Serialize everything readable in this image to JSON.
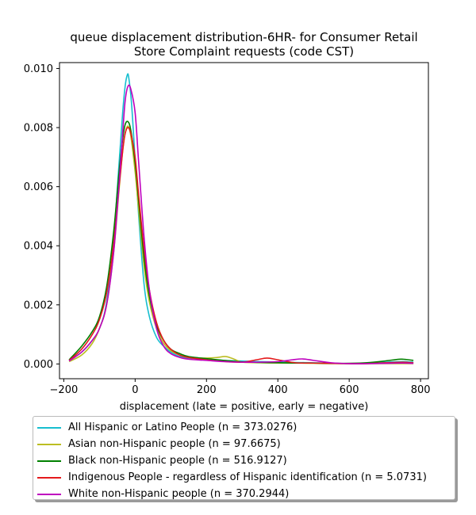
{
  "chart_data": {
    "type": "line",
    "title_lines": [
      "queue displacement distribution-6HR-  for Consumer Retail",
      "Store Complaint  requests (code CST)"
    ],
    "xlabel": "displacement (late = positive, early = negative)",
    "ylabel": "",
    "xlim": [
      -212,
      822
    ],
    "ylim": [
      -0.0005,
      0.0102
    ],
    "xticks": [
      -200,
      0,
      200,
      400,
      600,
      800
    ],
    "yticks": [
      0.0,
      0.002,
      0.004,
      0.006,
      0.008,
      0.01
    ],
    "xtick_labels": [
      "−200",
      "0",
      "200",
      "400",
      "600",
      "800"
    ],
    "ytick_labels": [
      "0.000",
      "0.002",
      "0.004",
      "0.006",
      "0.008",
      "0.010"
    ],
    "legend_position": "below",
    "series": [
      {
        "name": "All Hispanic or Latino People (n = 373.0276)",
        "color": "#17becf",
        "x": [
          -185,
          -150,
          -120,
          -100,
          -80,
          -60,
          -45,
          -35,
          -28,
          -22,
          -18,
          -10,
          0,
          10,
          25,
          40,
          60,
          80,
          100,
          125,
          150,
          200,
          250,
          300,
          350,
          400,
          450,
          500,
          550,
          600,
          650,
          700,
          750,
          780
        ],
        "y": [
          0.00012,
          0.0004,
          0.0008,
          0.0012,
          0.0021,
          0.0043,
          0.0068,
          0.0085,
          0.0094,
          0.00978,
          0.0097,
          0.0088,
          0.0069,
          0.005,
          0.0027,
          0.0016,
          0.0009,
          0.0006,
          0.0004,
          0.00025,
          0.0002,
          0.00016,
          0.00012,
          0.0001,
          8e-05,
          6e-05,
          5e-05,
          4e-05,
          2e-05,
          1e-05,
          2e-05,
          6e-05,
          8e-05,
          6e-05
        ]
      },
      {
        "name": "Asian non-Hispanic people (n = 97.6675)",
        "color": "#bcbd22",
        "x": [
          -185,
          -150,
          -120,
          -100,
          -80,
          -60,
          -45,
          -35,
          -28,
          -20,
          -12,
          0,
          10,
          25,
          40,
          60,
          80,
          100,
          125,
          150,
          200,
          230,
          255,
          280,
          300,
          350,
          400,
          450,
          500,
          550,
          600,
          650,
          700,
          750,
          780
        ],
        "y": [
          8e-05,
          0.0003,
          0.0007,
          0.0012,
          0.002,
          0.0038,
          0.0059,
          0.0072,
          0.0078,
          0.00805,
          0.0077,
          0.0065,
          0.0052,
          0.0033,
          0.0021,
          0.0012,
          0.0007,
          0.00045,
          0.0003,
          0.00022,
          0.0002,
          0.00022,
          0.00025,
          0.00015,
          6e-05,
          4e-05,
          3e-05,
          3e-05,
          2e-05,
          1e-05,
          1e-05,
          1e-05,
          1e-05,
          1e-05,
          1e-05
        ]
      },
      {
        "name": "Black non-Hispanic people (n = 516.9127)",
        "color": "#008000",
        "x": [
          -185,
          -150,
          -120,
          -100,
          -80,
          -60,
          -45,
          -35,
          -28,
          -20,
          -12,
          0,
          10,
          25,
          40,
          60,
          80,
          100,
          125,
          150,
          200,
          250,
          300,
          350,
          400,
          450,
          500,
          550,
          600,
          650,
          700,
          740,
          760,
          780
        ],
        "y": [
          0.00014,
          0.0006,
          0.0011,
          0.0016,
          0.0026,
          0.0045,
          0.0065,
          0.0076,
          0.0081,
          0.0082,
          0.0079,
          0.0068,
          0.0055,
          0.0036,
          0.0023,
          0.0013,
          0.0008,
          0.0005,
          0.00035,
          0.00025,
          0.00018,
          0.00012,
          7e-05,
          5e-05,
          4e-05,
          3e-05,
          3e-05,
          2e-05,
          2e-05,
          4e-05,
          0.0001,
          0.00016,
          0.00015,
          0.00012
        ]
      },
      {
        "name": "Indigenous People - regardless of Hispanic identification (n = 5.0731)",
        "color": "#e41a1c",
        "x": [
          -185,
          -150,
          -120,
          -100,
          -80,
          -60,
          -45,
          -35,
          -28,
          -20,
          -12,
          0,
          10,
          25,
          40,
          60,
          80,
          100,
          125,
          150,
          200,
          250,
          300,
          340,
          370,
          400,
          450,
          500,
          550,
          600,
          650,
          700,
          750,
          780
        ],
        "y": [
          0.00012,
          0.0005,
          0.001,
          0.0015,
          0.0024,
          0.0041,
          0.006,
          0.0072,
          0.0078,
          0.008,
          0.0078,
          0.007,
          0.0057,
          0.0039,
          0.0025,
          0.0014,
          0.0008,
          0.0005,
          0.0003,
          0.00022,
          0.00014,
          8e-05,
          6e-05,
          0.00014,
          0.0002,
          0.00014,
          4e-05,
          3e-05,
          2e-05,
          1e-05,
          1e-05,
          4e-05,
          6e-05,
          4e-05
        ]
      },
      {
        "name": "White non-Hispanic people (n = 370.2944)",
        "color": "#bf00bf",
        "x": [
          -185,
          -150,
          -120,
          -100,
          -80,
          -60,
          -45,
          -35,
          -28,
          -20,
          -12,
          0,
          10,
          25,
          40,
          60,
          80,
          100,
          125,
          150,
          200,
          250,
          300,
          350,
          400,
          440,
          470,
          500,
          550,
          600,
          650,
          700,
          750,
          780
        ],
        "y": [
          0.0001,
          0.0004,
          0.0008,
          0.0012,
          0.002,
          0.0038,
          0.0061,
          0.0078,
          0.0089,
          0.0094,
          0.0093,
          0.0085,
          0.0068,
          0.0043,
          0.0025,
          0.0012,
          0.0006,
          0.00035,
          0.00022,
          0.00016,
          0.00012,
          8e-05,
          6e-05,
          6e-05,
          8e-05,
          0.00014,
          0.00017,
          0.00012,
          4e-05,
          1e-05,
          1e-05,
          2e-05,
          3e-05,
          2e-05
        ]
      }
    ]
  }
}
